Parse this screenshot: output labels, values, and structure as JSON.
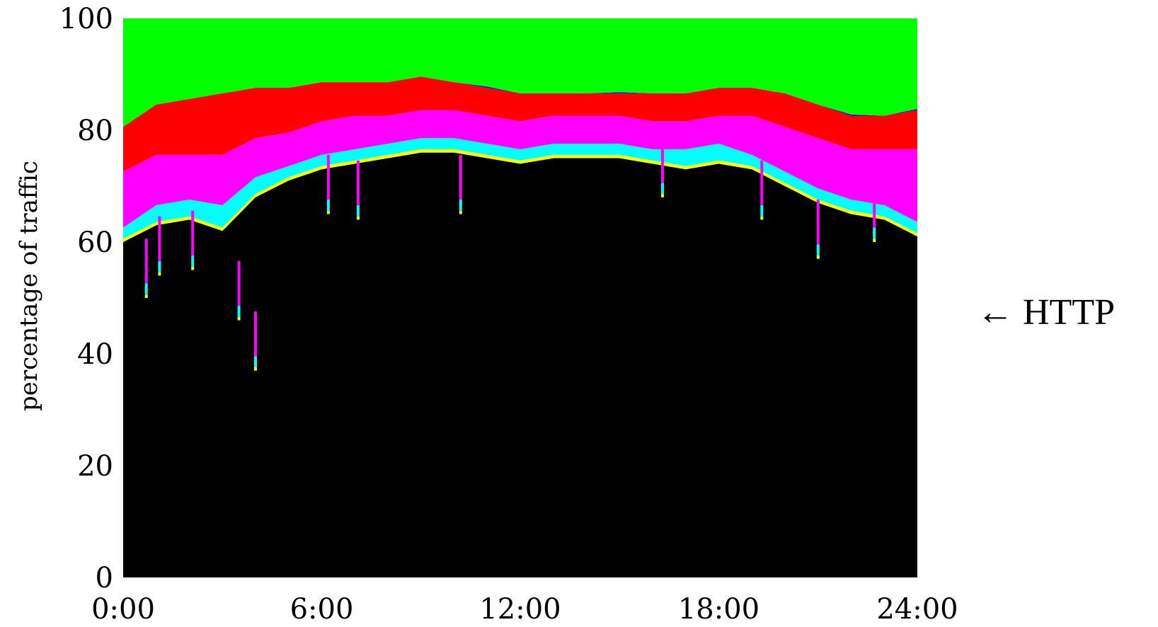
{
  "chart_data": {
    "type": "area",
    "title": "",
    "xlabel": "",
    "ylabel": "percentage of traffic",
    "ylim": [
      0,
      100
    ],
    "yticks": [
      "0",
      "20",
      "40",
      "60",
      "80",
      "100"
    ],
    "xticks": [
      "0:00",
      "6:00",
      "12:00",
      "18:00",
      "24:00"
    ],
    "grid": false,
    "stacking": "percent",
    "colors": {
      "http": "#000000",
      "yellow_layer": "#ffff00",
      "cyan_layer": "#00ffff",
      "magenta_layer": "#ff00ff",
      "red_layer": "#ff0000",
      "blue_layer": "#0000ff",
      "remainder": "#00ff00"
    },
    "annotations": [
      {
        "text": "← HTTP",
        "points_to_series": "http"
      }
    ],
    "x_hours": [
      0,
      1,
      2,
      3,
      4,
      5,
      6,
      7,
      8,
      9,
      10,
      11,
      12,
      13,
      14,
      15,
      16,
      17,
      18,
      19,
      20,
      21,
      22,
      23,
      24
    ],
    "series": [
      {
        "key": "http",
        "values": [
          60,
          63,
          64,
          62,
          68,
          71,
          73,
          74,
          75,
          76,
          76,
          75,
          74,
          75,
          75,
          75,
          74,
          73,
          74,
          73,
          70,
          67,
          65,
          64,
          61
        ]
      },
      {
        "key": "yellow_layer",
        "values": [
          0.6,
          0.6,
          0.6,
          0.6,
          0.6,
          0.6,
          0.6,
          0.6,
          0.6,
          0.6,
          0.6,
          0.6,
          0.6,
          0.6,
          0.6,
          0.6,
          0.6,
          0.6,
          0.6,
          0.6,
          0.6,
          0.6,
          0.6,
          0.6,
          0.6
        ]
      },
      {
        "key": "cyan_layer",
        "values": [
          2,
          3,
          3,
          4,
          3,
          2,
          2,
          2,
          2,
          2,
          2,
          2,
          2,
          2,
          2,
          2,
          2,
          3,
          3,
          2,
          2,
          2,
          2,
          2,
          2
        ]
      },
      {
        "key": "magenta_layer",
        "values": [
          10,
          9,
          8,
          9,
          7,
          6,
          6,
          6,
          5,
          5,
          5,
          5,
          5,
          5,
          5,
          5,
          5,
          5,
          5,
          7,
          8,
          9,
          9,
          10,
          13
        ]
      },
      {
        "key": "red_layer",
        "values": [
          8,
          9,
          10,
          11,
          9,
          8,
          7,
          6,
          6,
          6,
          5,
          5,
          5,
          4,
          4,
          4,
          5,
          5,
          5,
          5,
          6,
          6,
          6,
          6,
          7
        ]
      },
      {
        "key": "blue_layer",
        "values": [
          0,
          0,
          0,
          0,
          0,
          0,
          0,
          0,
          0,
          0,
          0,
          0.2,
          0,
          0,
          0,
          0.2,
          0,
          0,
          0,
          0,
          0,
          0,
          0.2,
          0,
          0.2
        ]
      },
      {
        "key": "remainder",
        "values": [
          19.4,
          15.4,
          14.4,
          13.4,
          12.4,
          12.4,
          11.4,
          11.4,
          11.4,
          10.4,
          11.4,
          12.2,
          13.4,
          13.4,
          13.4,
          13.2,
          13.4,
          13.4,
          12.4,
          12.4,
          13.4,
          15.4,
          17.2,
          17.4,
          16.2
        ]
      }
    ],
    "dips": [
      {
        "x_hour": 0.7,
        "http": 50
      },
      {
        "x_hour": 1.1,
        "http": 54
      },
      {
        "x_hour": 2.1,
        "http": 55
      },
      {
        "x_hour": 3.5,
        "http": 46
      },
      {
        "x_hour": 4.0,
        "http": 37
      },
      {
        "x_hour": 6.2,
        "http": 65
      },
      {
        "x_hour": 7.1,
        "http": 64
      },
      {
        "x_hour": 10.2,
        "http": 65
      },
      {
        "x_hour": 16.3,
        "http": 68
      },
      {
        "x_hour": 19.3,
        "http": 64
      },
      {
        "x_hour": 21.0,
        "http": 57
      },
      {
        "x_hour": 22.7,
        "http": 60
      }
    ]
  }
}
